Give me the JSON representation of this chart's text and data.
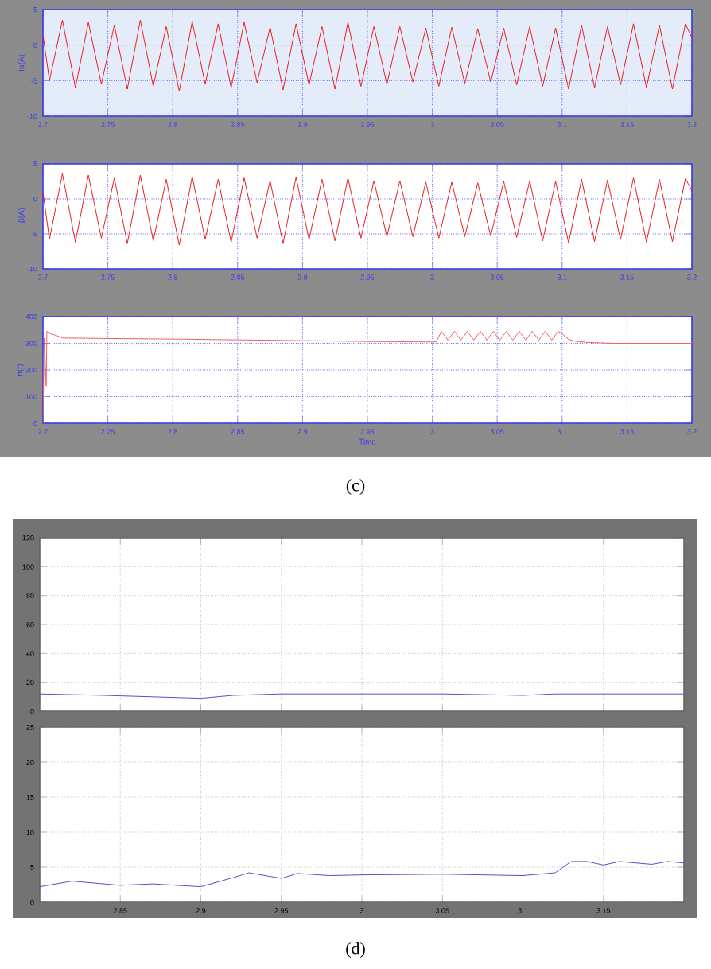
{
  "chart_data": [
    {
      "type": "line",
      "ylabel": "Iα(A)",
      "x": [
        2.7,
        2.705,
        2.715,
        2.725,
        2.735,
        2.745,
        2.755,
        2.765,
        2.775,
        2.785,
        2.795,
        2.805,
        2.815,
        2.825,
        2.835,
        2.845,
        2.855,
        2.865,
        2.875,
        2.885,
        2.895,
        2.905,
        2.915,
        2.925,
        2.935,
        2.945,
        2.955,
        2.965,
        2.975,
        2.985,
        2.995,
        3.005,
        3.015,
        3.025,
        3.035,
        3.045,
        3.055,
        3.065,
        3.075,
        3.085,
        3.095,
        3.105,
        3.115,
        3.125,
        3.135,
        3.145,
        3.155,
        3.165,
        3.175,
        3.185,
        3.195,
        3.2
      ],
      "series": [
        {
          "color": "#e8201f",
          "values": [
            1.5,
            -5,
            3.5,
            -6,
            3.2,
            -5.5,
            2.8,
            -6.2,
            3.5,
            -5.8,
            2.6,
            -6.5,
            3.3,
            -5.5,
            3.0,
            -6.0,
            3.2,
            -5.3,
            2.5,
            -6.3,
            3.0,
            -5.6,
            2.6,
            -6.2,
            3.2,
            -5.8,
            2.6,
            -5.5,
            2.6,
            -5.2,
            2.4,
            -5.8,
            2.5,
            -5.4,
            2.3,
            -5.2,
            2.4,
            -5.6,
            2.6,
            -5.8,
            2.4,
            -6.2,
            2.8,
            -6.0,
            2.6,
            -5.6,
            3.0,
            -6.0,
            2.8,
            -6.2,
            3.0,
            1.0
          ]
        }
      ],
      "xlim": [
        2.7,
        3.2
      ],
      "ylim": [
        -10,
        5
      ],
      "xticks": [
        2.7,
        2.75,
        2.8,
        2.85,
        2.9,
        2.95,
        3,
        3.05,
        3.1,
        3.15,
        3.2
      ],
      "yticks": [
        -10,
        -5,
        0,
        5
      ],
      "grid": true
    },
    {
      "type": "line",
      "ylabel": "Iβ(A)",
      "x": [
        2.7,
        2.705,
        2.715,
        2.725,
        2.735,
        2.745,
        2.755,
        2.765,
        2.775,
        2.785,
        2.795,
        2.805,
        2.815,
        2.825,
        2.835,
        2.845,
        2.855,
        2.865,
        2.875,
        2.885,
        2.895,
        2.905,
        2.915,
        2.925,
        2.935,
        2.945,
        2.955,
        2.965,
        2.975,
        2.985,
        2.995,
        3.005,
        3.015,
        3.025,
        3.035,
        3.045,
        3.055,
        3.065,
        3.075,
        3.085,
        3.095,
        3.105,
        3.115,
        3.125,
        3.135,
        3.145,
        3.155,
        3.165,
        3.175,
        3.185,
        3.195,
        3.2
      ],
      "series": [
        {
          "color": "#e8201f",
          "values": [
            1.0,
            -5.8,
            3.6,
            -6.2,
            3.4,
            -5.6,
            3.0,
            -6.4,
            3.4,
            -6.0,
            2.8,
            -6.6,
            3.2,
            -5.8,
            2.8,
            -6.2,
            3.0,
            -5.6,
            2.6,
            -6.4,
            3.1,
            -5.8,
            2.8,
            -6.0,
            3.0,
            -5.6,
            2.6,
            -5.4,
            2.6,
            -5.4,
            2.4,
            -5.6,
            2.4,
            -5.4,
            2.3,
            -5.3,
            2.5,
            -5.5,
            2.6,
            -6.0,
            2.5,
            -6.3,
            2.8,
            -6.1,
            2.7,
            -5.8,
            3.0,
            -6.2,
            2.8,
            -6.1,
            2.9,
            1.2
          ]
        }
      ],
      "xlim": [
        2.7,
        3.2
      ],
      "ylim": [
        -10,
        5
      ],
      "xticks": [
        2.7,
        2.75,
        2.8,
        2.85,
        2.9,
        2.95,
        3,
        3.05,
        3.1,
        3.15,
        3.2
      ],
      "yticks": [
        -10,
        -5,
        0,
        5
      ],
      "grid": true
    },
    {
      "type": "line",
      "xlabel": "Time",
      "ylabel": "n(r)",
      "x": [
        2.7,
        2.701,
        2.7025,
        2.703,
        2.706,
        2.71,
        2.715,
        2.75,
        2.8,
        2.85,
        2.9,
        2.95,
        3.0,
        3.003,
        3.007,
        3.012,
        3.017,
        3.022,
        3.027,
        3.032,
        3.037,
        3.042,
        3.047,
        3.052,
        3.057,
        3.062,
        3.067,
        3.072,
        3.077,
        3.082,
        3.087,
        3.092,
        3.097,
        3.1,
        3.105,
        3.11,
        3.12,
        3.14,
        3.2
      ],
      "series": [
        {
          "color": "#f06060",
          "values": [
            0,
            320,
            140,
            345,
            335,
            330,
            320,
            318,
            316,
            313,
            310,
            307,
            305,
            306,
            345,
            312,
            345,
            312,
            345,
            312,
            345,
            312,
            345,
            312,
            345,
            312,
            345,
            312,
            345,
            312,
            345,
            312,
            345,
            335,
            315,
            308,
            303,
            300,
            300
          ]
        }
      ],
      "xlim": [
        2.7,
        3.2
      ],
      "ylim": [
        0,
        400
      ],
      "xticks": [
        2.7,
        2.75,
        2.8,
        2.85,
        2.9,
        2.95,
        3,
        3.05,
        3.1,
        3.15,
        3.2
      ],
      "yticks": [
        0,
        100,
        200,
        300,
        400
      ],
      "grid": true,
      "annotations": [
        "(c)"
      ]
    },
    {
      "type": "line",
      "x": [
        2.8,
        2.84,
        2.87,
        2.9,
        2.92,
        2.95,
        3.0,
        3.05,
        3.1,
        3.12,
        3.2
      ],
      "series": [
        {
          "color": "#5050d0",
          "values": [
            12,
            11,
            10,
            9,
            11,
            12,
            12,
            12,
            11,
            12,
            12
          ]
        }
      ],
      "xlim": [
        2.8,
        3.2
      ],
      "ylim": [
        0,
        120
      ],
      "xticks": [
        2.85,
        2.9,
        2.95,
        3,
        3.05,
        3.1,
        3.15
      ],
      "yticks": [
        0,
        20,
        40,
        60,
        80,
        100,
        120
      ],
      "grid": true,
      "tick_labels": "y"
    },
    {
      "type": "line",
      "x": [
        2.8,
        2.82,
        2.84,
        2.85,
        2.87,
        2.9,
        2.92,
        2.93,
        2.95,
        2.96,
        2.98,
        3.0,
        3.05,
        3.1,
        3.12,
        3.13,
        3.14,
        3.15,
        3.16,
        3.18,
        3.19,
        3.2
      ],
      "series": [
        {
          "color": "#5050d0",
          "values": [
            2.2,
            3.0,
            2.6,
            2.4,
            2.6,
            2.2,
            3.5,
            4.2,
            3.4,
            4.1,
            3.8,
            3.9,
            4.0,
            3.8,
            4.2,
            5.8,
            5.8,
            5.3,
            5.8,
            5.4,
            5.8,
            5.6
          ]
        }
      ],
      "xlim": [
        2.8,
        3.2
      ],
      "ylim": [
        0,
        25
      ],
      "xticks": [
        2.85,
        2.9,
        2.95,
        3,
        3.05,
        3.1,
        3.15
      ],
      "yticks": [
        0,
        5,
        10,
        15,
        20,
        25
      ],
      "grid": true,
      "annotations": [
        "(d)"
      ]
    }
  ]
}
